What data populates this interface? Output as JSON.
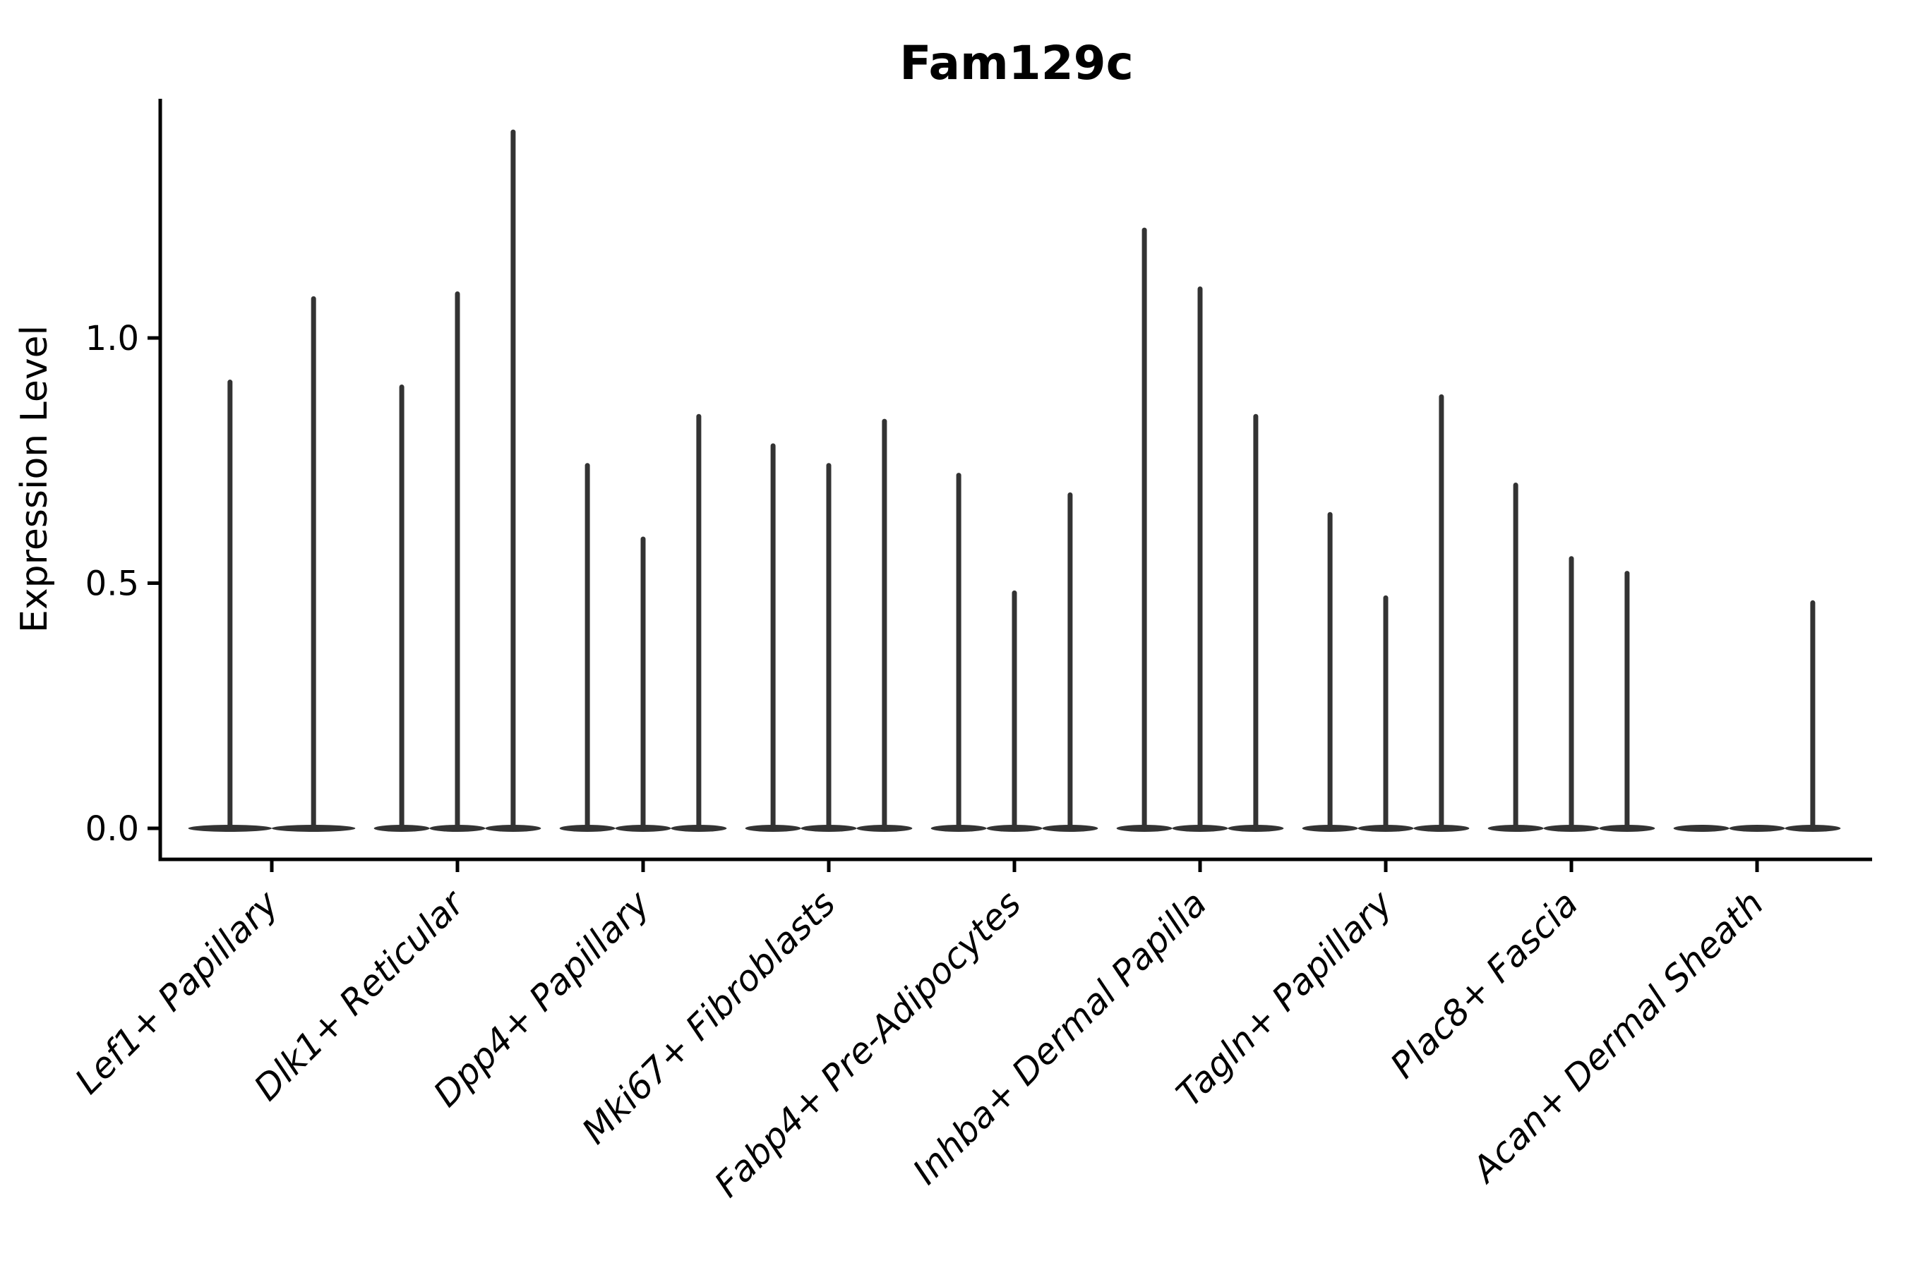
{
  "figure": {
    "background": "#ffffff",
    "ink_color": "#000000"
  },
  "chart_data": {
    "type": "violin",
    "title": "Fam129c",
    "xlabel": "",
    "ylabel": "Expression Level",
    "yticks": [
      0.0,
      0.5,
      1.0
    ],
    "ytick_labels": [
      "0.0",
      "0.5",
      "1.0"
    ],
    "ylim": [
      -0.06,
      1.49
    ],
    "grid": false,
    "legend": "none",
    "violin_color": "#333333",
    "x_label_rotation_deg": 45,
    "categories": [
      "Lef1+ Papillary",
      "Dlk1+ Reticular",
      "Dpp4+ Papillary",
      "Mki67+ Fibroblasts",
      "Fabp4+ Pre-Adipocytes",
      "Inhba+ Dermal Papilla",
      "Tagln+ Papillary",
      "Plac8+ Fascia",
      "Acan+ Dermal Sheath"
    ],
    "groups": [
      {
        "label": "Lef1+ Papillary",
        "slots": 2,
        "violins": [
          {
            "pos": -0.225,
            "peak": 0.91
          },
          {
            "pos": 0.225,
            "peak": 1.08
          }
        ]
      },
      {
        "label": "Dlk1+ Reticular",
        "slots": 3,
        "violins": [
          {
            "pos": -0.3,
            "peak": 0.9
          },
          {
            "pos": 0.0,
            "peak": 1.09
          },
          {
            "pos": 0.3,
            "peak": 1.42
          }
        ]
      },
      {
        "label": "Dpp4+ Papillary",
        "slots": 3,
        "violins": [
          {
            "pos": -0.3,
            "peak": 0.74
          },
          {
            "pos": 0.0,
            "peak": 0.59
          },
          {
            "pos": 0.3,
            "peak": 0.84
          }
        ]
      },
      {
        "label": "Mki67+ Fibroblasts",
        "slots": 3,
        "violins": [
          {
            "pos": -0.3,
            "peak": 0.78
          },
          {
            "pos": 0.0,
            "peak": 0.74
          },
          {
            "pos": 0.3,
            "peak": 0.83
          }
        ]
      },
      {
        "label": "Fabp4+ Pre-Adipocytes",
        "slots": 3,
        "violins": [
          {
            "pos": -0.3,
            "peak": 0.72
          },
          {
            "pos": 0.0,
            "peak": 0.48
          },
          {
            "pos": 0.3,
            "peak": 0.68
          }
        ]
      },
      {
        "label": "Inhba+ Dermal Papilla",
        "slots": 3,
        "violins": [
          {
            "pos": -0.3,
            "peak": 1.22
          },
          {
            "pos": 0.0,
            "peak": 1.1
          },
          {
            "pos": 0.3,
            "peak": 0.84
          }
        ]
      },
      {
        "label": "Tagln+ Papillary",
        "slots": 3,
        "violins": [
          {
            "pos": -0.3,
            "peak": 0.64
          },
          {
            "pos": 0.0,
            "peak": 0.47
          },
          {
            "pos": 0.3,
            "peak": 0.88
          }
        ]
      },
      {
        "label": "Plac8+ Fascia",
        "slots": 3,
        "violins": [
          {
            "pos": -0.3,
            "peak": 0.7
          },
          {
            "pos": 0.0,
            "peak": 0.55
          },
          {
            "pos": 0.3,
            "peak": 0.52
          }
        ]
      },
      {
        "label": "Acan+ Dermal Sheath",
        "slots": 3,
        "violins": [
          {
            "pos": -0.3,
            "peak": 0.0
          },
          {
            "pos": 0.0,
            "peak": 0.0
          },
          {
            "pos": 0.3,
            "peak": 0.46
          }
        ]
      }
    ]
  }
}
